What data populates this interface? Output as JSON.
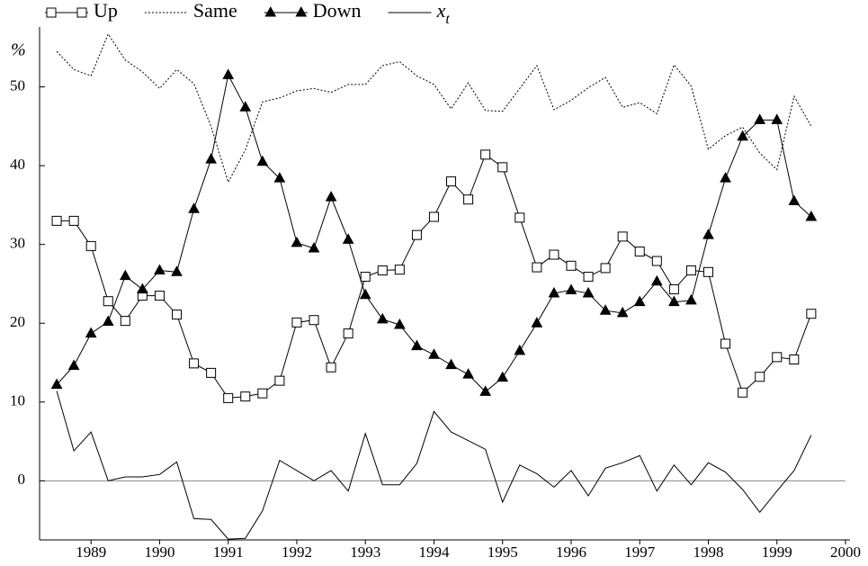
{
  "chart_data": {
    "type": "line",
    "y_label": "%",
    "x": [
      1988.5,
      1988.75,
      1989,
      1989.25,
      1989.5,
      1989.75,
      1990,
      1990.25,
      1990.5,
      1990.75,
      1991,
      1991.25,
      1991.5,
      1991.75,
      1992,
      1992.25,
      1992.5,
      1992.75,
      1993,
      1993.25,
      1993.5,
      1993.75,
      1994,
      1994.25,
      1994.5,
      1994.75,
      1995,
      1995.25,
      1995.5,
      1995.75,
      1996,
      1996.25,
      1996.5,
      1996.75,
      1997,
      1997.25,
      1997.5,
      1997.75,
      1998,
      1998.25,
      1998.5,
      1998.75,
      1999,
      1999.25,
      1999.5
    ],
    "series": [
      {
        "name": "Up",
        "color": "#000000",
        "marker": "square",
        "dash": "none",
        "values": [
          33.0,
          33.0,
          29.8,
          22.8,
          20.3,
          23.5,
          23.5,
          21.1,
          14.9,
          13.7,
          10.5,
          10.7,
          11.1,
          12.7,
          20.1,
          20.4,
          14.4,
          18.7,
          25.9,
          26.7,
          26.8,
          31.2,
          33.5,
          38.0,
          35.7,
          41.4,
          39.8,
          33.4,
          27.1,
          28.7,
          27.3,
          25.9,
          27.0,
          31.0,
          29.1,
          27.9,
          24.3,
          26.7,
          26.5,
          17.4,
          11.2,
          13.2,
          15.7,
          15.4,
          21.2
        ]
      },
      {
        "name": "Same",
        "color": "#000000",
        "marker": "none",
        "dash": "dotted",
        "values": [
          54.5,
          52.2,
          51.4,
          56.7,
          53.4,
          51.9,
          49.8,
          52.2,
          50.4,
          45.0,
          37.9,
          42.0,
          48.1,
          48.6,
          49.5,
          49.8,
          49.3,
          50.3,
          50.3,
          52.7,
          53.2,
          51.4,
          50.3,
          47.2,
          50.5,
          47.0,
          46.9,
          49.8,
          52.7,
          47.1,
          48.3,
          49.9,
          51.2,
          47.4,
          48.0,
          46.6,
          52.8,
          50.1,
          42.1,
          43.8,
          44.9,
          41.6,
          39.5,
          48.8,
          45.0
        ]
      },
      {
        "name": "Down",
        "color": "#000000",
        "marker": "triangle",
        "dash": "none",
        "values": [
          12.2,
          14.6,
          18.7,
          20.2,
          26.0,
          24.3,
          26.7,
          26.5,
          34.5,
          40.8,
          51.5,
          47.4,
          40.5,
          38.4,
          30.2,
          29.5,
          36.0,
          30.6,
          23.6,
          20.5,
          19.8,
          17.1,
          16.0,
          14.7,
          13.5,
          11.3,
          13.1,
          16.5,
          20.0,
          23.8,
          24.2,
          23.8,
          21.6,
          21.3,
          22.7,
          25.3,
          22.7,
          22.9,
          31.2,
          38.4,
          43.7,
          45.8,
          45.8,
          35.5,
          33.5
        ]
      },
      {
        "name": "x_t",
        "color": "#000000",
        "marker": "none",
        "dash": "none",
        "values": [
          11.4,
          3.8,
          6.2,
          0.0,
          0.5,
          0.5,
          0.8,
          2.4,
          -4.8,
          -4.9,
          -7.4,
          -7.3,
          -3.8,
          2.6,
          1.3,
          0.0,
          1.3,
          -1.3,
          6.0,
          -0.5,
          -0.5,
          2.2,
          8.8,
          6.2,
          5.1,
          4.0,
          -2.7,
          2.0,
          0.9,
          -0.8,
          1.3,
          -1.9,
          1.6,
          2.3,
          3.2,
          -1.3,
          2.0,
          -0.5,
          2.3,
          1.1,
          -1.1,
          -4.0,
          -1.3,
          1.3,
          5.8
        ]
      }
    ],
    "xlim": [
      1988.25,
      2000
    ],
    "xticks": [
      1989,
      1990,
      1991,
      1992,
      1993,
      1994,
      1995,
      1996,
      1997,
      1998,
      1999,
      2000
    ],
    "ylim": [
      -7.5,
      57.6
    ],
    "yticks": [
      0,
      10,
      20,
      30,
      40,
      50
    ],
    "reference_line": 0,
    "legend": "top",
    "grid": false
  }
}
